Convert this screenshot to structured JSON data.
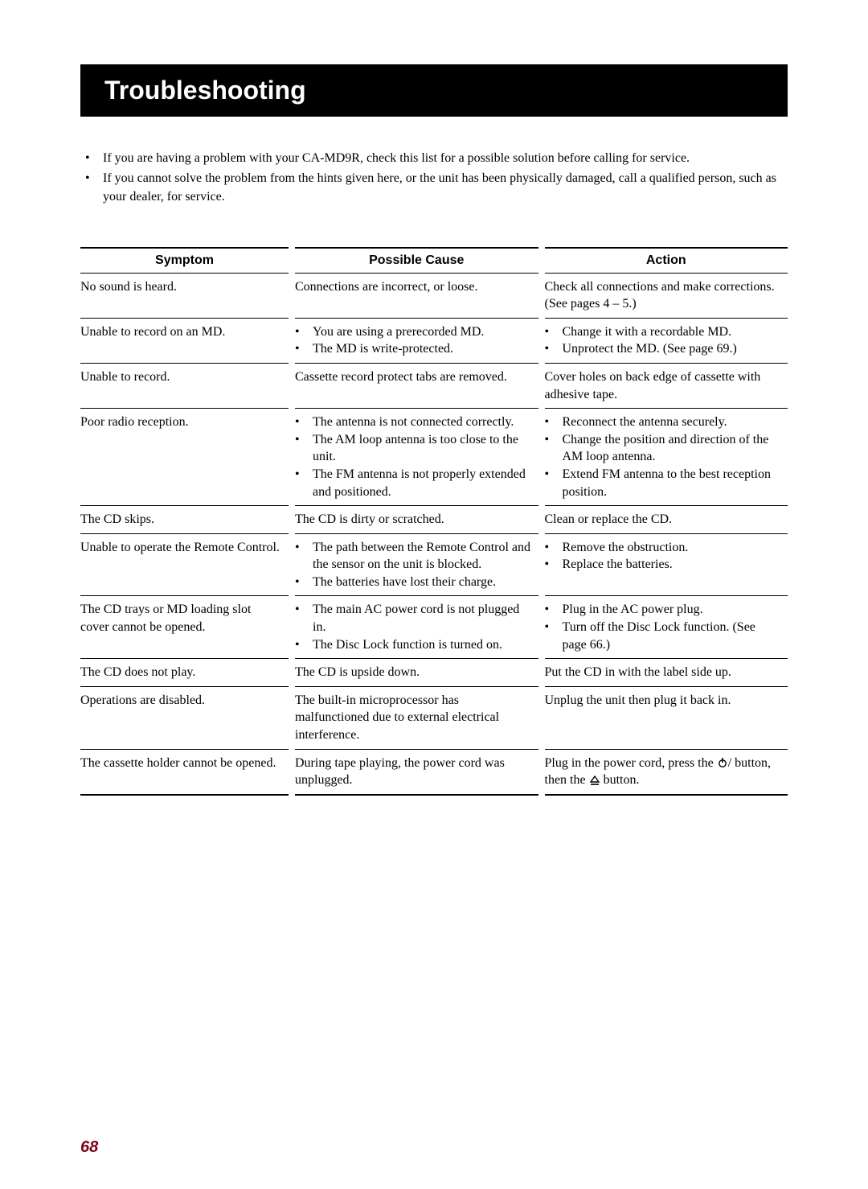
{
  "title": "Troubleshooting",
  "intro": [
    "If you are having a problem with your CA-MD9R, check this list for a possible solution before calling for service.",
    "If you cannot solve the problem from the hints given here, or the unit has been physically damaged, call a qualified person, such as your dealer, for service."
  ],
  "headers": {
    "symptom": "Symptom",
    "cause": "Possible Cause",
    "action": "Action"
  },
  "rows": [
    {
      "symptom": "No sound is heard.",
      "cause_plain": "Connections are incorrect, or loose.",
      "action_plain": "Check all connections and make corrections. (See pages 4 – 5.)"
    },
    {
      "symptom": "Unable to record on an MD.",
      "cause_list": [
        "You are using a prerecorded MD.",
        "The MD is write-protected."
      ],
      "action_list": [
        "Change it with a recordable MD.",
        "Unprotect the MD. (See page 69.)"
      ]
    },
    {
      "symptom": "Unable to record.",
      "cause_plain": "Cassette record protect tabs are removed.",
      "action_plain": "Cover holes on back edge of cassette with adhesive tape."
    },
    {
      "symptom": "Poor radio reception.",
      "cause_list": [
        "The antenna is not connected correctly.",
        "The AM loop antenna is too close to the unit.",
        "The FM antenna is not properly extended and positioned."
      ],
      "action_list": [
        "Reconnect the antenna securely.",
        "Change the position and direction of the AM loop antenna.",
        "Extend FM antenna to the best reception position."
      ]
    },
    {
      "symptom": "The CD skips.",
      "cause_plain": "The CD is dirty or scratched.",
      "action_plain": "Clean or replace the CD."
    },
    {
      "symptom": "Unable to operate the Remote Control.",
      "cause_list": [
        "The path between the Remote Control and the sensor on the unit is blocked.",
        "The batteries have lost their charge."
      ],
      "action_list": [
        "Remove the obstruction.",
        "Replace the batteries."
      ]
    },
    {
      "symptom": "The CD trays or MD loading slot cover cannot be opened.",
      "cause_list": [
        "The main AC power cord is not plugged in.",
        "The Disc Lock function is turned on."
      ],
      "action_list": [
        "Plug in the AC power plug.",
        "Turn off the Disc Lock function. (See page 66.)"
      ]
    },
    {
      "symptom": "The CD does not play.",
      "cause_plain": "The CD is upside down.",
      "action_plain": "Put the CD in with the label side up."
    },
    {
      "symptom": "Operations are disabled.",
      "cause_plain": "The built-in microprocessor has malfunctioned due to external electrical interference.",
      "action_plain": "Unplug the unit then plug it back in."
    },
    {
      "symptom": "The cassette holder cannot be opened.",
      "cause_plain": "During tape playing, the power cord was unplugged.",
      "action_special_prefix": "Plug in the power cord, press the ",
      "action_special_mid": " button, then the ",
      "action_special_suffix": " button."
    }
  ],
  "page_number": "68",
  "colors": {
    "accent": "#7a0019"
  }
}
